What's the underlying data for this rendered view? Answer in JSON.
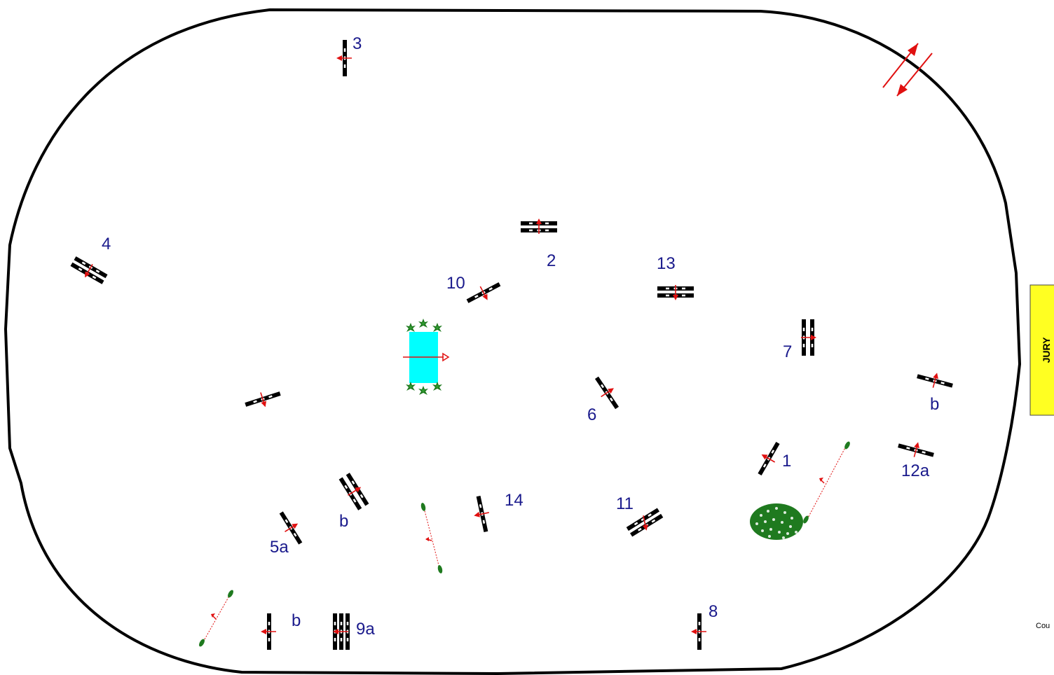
{
  "colors": {
    "outline": "#000000",
    "label": "#1a1a8c",
    "arrow": "#e01010",
    "water": "#00ffff",
    "plant": "#1f7a1f",
    "jury_box": "#ffff22"
  },
  "jury": {
    "label": "JURY"
  },
  "footnote": {
    "text": "Cou"
  },
  "labels": {
    "n1": "1",
    "n2": "2",
    "n3": "3",
    "n4": "4",
    "n5a": "5a",
    "n5b": "b",
    "n6": "6",
    "n7": "7",
    "n8": "8",
    "n9a": "9a",
    "n9b": "b",
    "n10": "10",
    "n11": "11",
    "n12a": "12a",
    "n12b": "b",
    "n13": "13",
    "n14": "14"
  },
  "icons": {
    "entrance": "double-arrow-icon",
    "fence": "fence-pole-icon",
    "water": "water-jump-icon",
    "shrub": "shrub-icon",
    "hedge": "hedge-icon"
  }
}
